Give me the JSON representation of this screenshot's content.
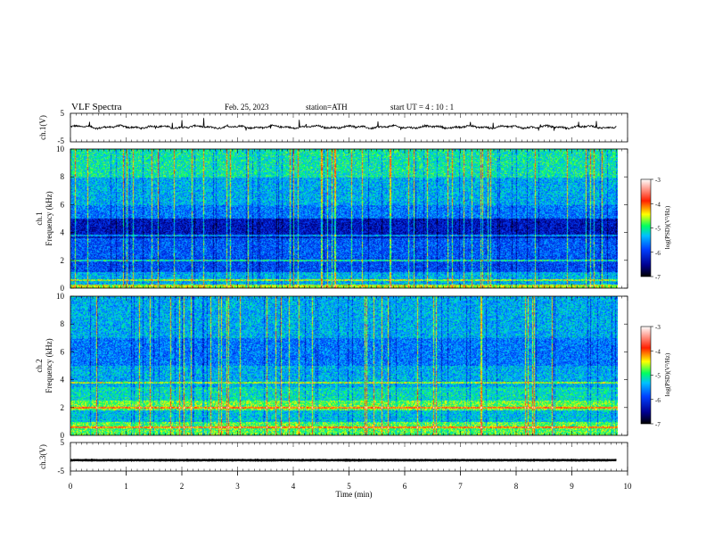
{
  "header": {
    "title": "VLF  Spectra",
    "date": "Feb. 25, 2023",
    "station": "station=ATH",
    "start_ut": "start  UT  =   4  : 10 : 1"
  },
  "chart_data": [
    {
      "id": "ch1-waveform",
      "type": "line",
      "ylabel": "ch.1(V)",
      "yticks": [
        "5",
        "-5"
      ],
      "ylim": [
        -5,
        5
      ],
      "xlim": [
        0,
        10
      ],
      "series": [
        {
          "values_note": "",
          "baseline": 0.2,
          "amplitude": 0.6
        }
      ],
      "color": "#000000"
    },
    {
      "id": "ch1-spectrogram",
      "type": "heatmap",
      "ylabel_line1": "ch.1",
      "ylabel_line2": "Frequency  (kHz)",
      "yticks": [
        "0",
        "2",
        "4",
        "6",
        "8",
        "10"
      ],
      "ylim": [
        0,
        10
      ],
      "xlim": [
        0,
        9.8
      ],
      "colorbar": {
        "label": "log(PSD)(V²/Hz)",
        "ticks": [
          "-3",
          "-4",
          "-5",
          "-6",
          "-7"
        ],
        "range": [
          -7,
          -3
        ]
      }
    },
    {
      "id": "ch2-spectrogram",
      "type": "heatmap",
      "ylabel_line1": "ch.2",
      "ylabel_line2": "Frequency  (kHz)",
      "yticks": [
        "0",
        "2",
        "4",
        "6",
        "8",
        "10"
      ],
      "ylim": [
        0,
        10
      ],
      "xlim": [
        0,
        9.8
      ],
      "colorbar": {
        "label": "log(PSD)(V²/Hz)",
        "ticks": [
          "-3",
          "-4",
          "-5",
          "-6",
          "-7"
        ],
        "range": [
          -7,
          -3
        ]
      }
    },
    {
      "id": "ch3-waveform",
      "type": "line",
      "ylabel": "ch.3(V)",
      "yticks": [
        "5",
        "-5"
      ],
      "ylim": [
        -5,
        5
      ],
      "xlim": [
        0,
        10
      ],
      "series": [
        {
          "baseline": -1.2,
          "amplitude": 0.15
        }
      ],
      "color": "#000000"
    }
  ],
  "xaxis": {
    "label": "Time  (min)",
    "ticks": [
      "0",
      "1",
      "2",
      "3",
      "4",
      "5",
      "6",
      "7",
      "8",
      "9",
      "10"
    ],
    "range": [
      0,
      10
    ]
  },
  "colors": {
    "cmap": [
      "#000033",
      "#0000a0",
      "#0050ff",
      "#00c8ff",
      "#00ff80",
      "#ffff00",
      "#ff4000",
      "#ffffff"
    ]
  }
}
